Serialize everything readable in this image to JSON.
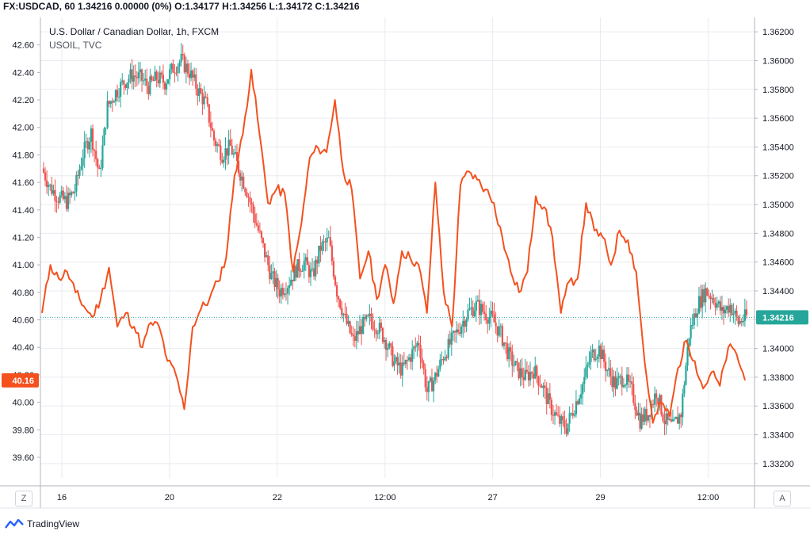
{
  "header": {
    "symbol_line": "FX:USDCAD, 60  1.34216 0.00000 (0%)  O:1.34177  H:1.34256  L:1.34172  C:1.34216"
  },
  "legend": {
    "main_title": "U.S. Dollar / Canadian Dollar, 1h, FXCM",
    "overlay_title": "USOIL, TVC"
  },
  "buttons": {
    "left_axis_mode": "Z",
    "right_axis_mode": "A"
  },
  "footer": {
    "brand": "TradingView"
  },
  "colors": {
    "up": "#26a69a",
    "down": "#ef5350",
    "overlay_line": "#f4511e",
    "last_price_bg": "#26a69a",
    "left_marker_bg": "#f4511e",
    "grid": "#e8ebf0"
  },
  "chart_data": {
    "type": "candlestick+line",
    "title": "U.S. Dollar / Canadian Dollar, 1h, FXCM",
    "x_tick_labels": [
      "16",
      "20",
      "22",
      "12:00",
      "27",
      "29",
      "12:00"
    ],
    "right_axis": {
      "label": "USDCAD",
      "range": [
        1.331,
        1.363
      ],
      "ticks": [
        "1.36200",
        "1.36000",
        "1.35800",
        "1.35600",
        "1.35400",
        "1.35200",
        "1.35000",
        "1.34800",
        "1.34600",
        "1.34400",
        "1.34200",
        "1.34000",
        "1.33800",
        "1.33600",
        "1.33400",
        "1.33200"
      ],
      "last_price": "1.34216"
    },
    "left_axis": {
      "label": "USOIL",
      "range": [
        39.45,
        42.8
      ],
      "ticks": [
        "42.60",
        "42.40",
        "42.20",
        "42.00",
        "41.80",
        "41.60",
        "41.40",
        "41.20",
        "41.00",
        "40.80",
        "40.60",
        "40.40",
        "40.20",
        "40.00",
        "39.80",
        "39.60"
      ],
      "last_price": "40.16"
    },
    "series": [
      {
        "name": "USDCAD",
        "kind": "candlestick",
        "close_path": [
          1.3525,
          1.3512,
          1.3505,
          1.3502,
          1.351,
          1.3535,
          1.355,
          1.352,
          1.3568,
          1.3578,
          1.3585,
          1.359,
          1.3588,
          1.3582,
          1.3588,
          1.3585,
          1.3595,
          1.36,
          1.3592,
          1.358,
          1.357,
          1.3545,
          1.3535,
          1.354,
          1.3525,
          1.351,
          1.349,
          1.347,
          1.345,
          1.344,
          1.3445,
          1.3455,
          1.346,
          1.345,
          1.347,
          1.3475,
          1.344,
          1.342,
          1.3405,
          1.3415,
          1.342,
          1.3415,
          1.3405,
          1.339,
          1.3385,
          1.3395,
          1.3405,
          1.337,
          1.338,
          1.3395,
          1.3405,
          1.3415,
          1.3425,
          1.343,
          1.3425,
          1.342,
          1.341,
          1.3395,
          1.3385,
          1.338,
          1.3385,
          1.3375,
          1.336,
          1.335,
          1.3345,
          1.336,
          1.3375,
          1.3395,
          1.34,
          1.3385,
          1.3375,
          1.338,
          1.337,
          1.335,
          1.3355,
          1.337,
          1.335,
          1.3345,
          1.3355,
          1.341,
          1.343,
          1.344,
          1.3435,
          1.3425,
          1.343,
          1.3418,
          1.3422
        ]
      },
      {
        "name": "USOIL",
        "kind": "line",
        "values": [
          40.65,
          41.0,
          40.9,
          40.95,
          40.8,
          40.7,
          40.62,
          40.75,
          40.98,
          40.55,
          40.65,
          40.55,
          40.4,
          40.58,
          40.55,
          40.3,
          40.2,
          39.95,
          40.55,
          40.68,
          40.75,
          40.88,
          41.05,
          41.65,
          41.95,
          42.42,
          41.95,
          41.45,
          41.55,
          41.52,
          40.95,
          41.3,
          41.78,
          41.85,
          41.82,
          42.2,
          41.68,
          41.55,
          40.9,
          41.1,
          40.75,
          41.0,
          40.72,
          41.1,
          41.05,
          41.0,
          40.65,
          41.6,
          40.8,
          40.55,
          41.58,
          41.68,
          41.62,
          41.55,
          41.45,
          41.2,
          40.95,
          40.8,
          40.95,
          41.5,
          41.42,
          41.2,
          40.65,
          40.88,
          40.9,
          41.45,
          41.25,
          41.2,
          41.0,
          41.25,
          41.18,
          40.95,
          40.3,
          39.85,
          40.0,
          39.9,
          40.25,
          40.45,
          40.3,
          40.1,
          40.22,
          40.12,
          40.4,
          40.35,
          40.16
        ]
      }
    ],
    "grid": true,
    "legend_position": "top-left"
  }
}
